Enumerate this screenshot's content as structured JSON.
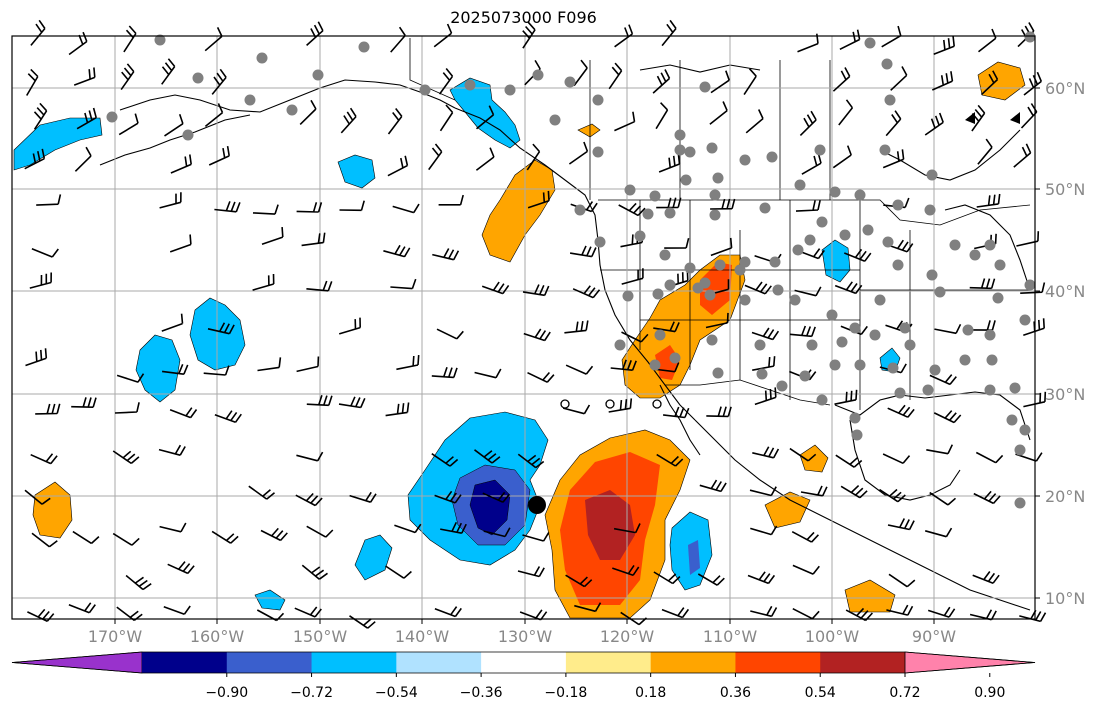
{
  "title": "2025073000 F096",
  "lon_labels": [
    "170°W",
    "160°W",
    "150°W",
    "140°W",
    "130°W",
    "120°W",
    "110°W",
    "100°W",
    "90°W"
  ],
  "lat_labels": [
    "60°N",
    "50°N",
    "40°N",
    "30°N",
    "20°N",
    "10°N"
  ],
  "colorbar": {
    "colors": [
      "#9932cc",
      "#00008b",
      "#3a5fcd",
      "#00bfff",
      "#b0e2ff",
      "#ffffff",
      "#ffec8b",
      "#ffa500",
      "#ff4500",
      "#b22222",
      "#ff82ab"
    ],
    "tick_labels": [
      "−0.90",
      "−0.72",
      "−0.54",
      "−0.36",
      "−0.18",
      "0.18",
      "0.36",
      "0.54",
      "0.72",
      "0.90"
    ]
  },
  "colors": {
    "ocean_land": "#ffffff",
    "coast": "#000000",
    "grid": "#aaaaaa",
    "station": "#808080"
  }
}
